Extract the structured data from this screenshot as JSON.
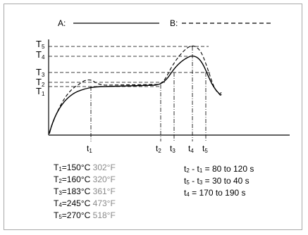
{
  "legend": {
    "a_label": "A:",
    "b_label": "B:"
  },
  "y_labels": [
    {
      "main": "T",
      "sub": "5"
    },
    {
      "main": "T",
      "sub": "4"
    },
    {
      "main": "T",
      "sub": "3"
    },
    {
      "main": "T",
      "sub": "2"
    },
    {
      "main": "T",
      "sub": "1"
    }
  ],
  "x_labels": [
    {
      "main": "t",
      "sub": "1"
    },
    {
      "main": "t",
      "sub": "2"
    },
    {
      "main": "t",
      "sub": "3"
    },
    {
      "main": "t",
      "sub": "4"
    },
    {
      "main": "t",
      "sub": "5"
    }
  ],
  "temperatures": [
    {
      "main": "T",
      "sub": "1",
      "celsius": "=150°C",
      "fahrenheit": "302°F"
    },
    {
      "main": "T",
      "sub": "2",
      "celsius": "=160°C",
      "fahrenheit": "320°F"
    },
    {
      "main": "T",
      "sub": "3",
      "celsius": "=183°C",
      "fahrenheit": "361°F"
    },
    {
      "main": "T",
      "sub": "4",
      "celsius": "=245°C",
      "fahrenheit": "473°F"
    },
    {
      "main": "T",
      "sub": "5",
      "celsius": "=270°C",
      "fahrenheit": "518°F"
    }
  ],
  "times": [
    {
      "a": "t",
      "a_sub": "2",
      "mid": " - ",
      "b": "t",
      "b_sub": "1",
      "rest": " = 80 to 120 s"
    },
    {
      "a": "t",
      "a_sub": "5",
      "mid": " - ",
      "b": "t",
      "b_sub": "3",
      "rest": " = 30 to 40 s"
    },
    {
      "a": "t",
      "a_sub": "4",
      "mid": "",
      "b": "",
      "b_sub": "",
      "rest": " = 170 to 190 s"
    }
  ],
  "colors": {
    "line": "#000000",
    "fahrenheit": "#8a8a8a",
    "frame": "#a8a8a8"
  }
}
